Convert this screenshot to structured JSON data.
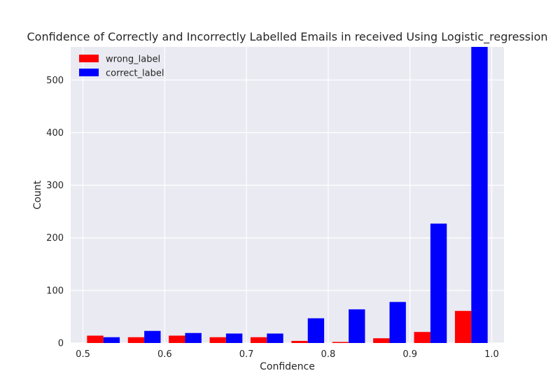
{
  "chart_data": {
    "type": "bar",
    "title": "Confidence of Correctly and Incorrectly Labelled Emails in received Using Logistic_regression",
    "xlabel": "Confidence",
    "ylabel": "Count",
    "xlim": [
      0.485,
      1.015
    ],
    "ylim": [
      0,
      563
    ],
    "x_ticks": [
      0.5,
      0.6,
      0.7,
      0.8,
      0.9,
      1.0
    ],
    "x_tick_labels": [
      "0.5",
      "0.6",
      "0.7",
      "0.8",
      "0.9",
      "1.0"
    ],
    "y_ticks": [
      0,
      100,
      200,
      300,
      400,
      500
    ],
    "y_tick_labels": [
      "0",
      "100",
      "200",
      "300",
      "400",
      "500"
    ],
    "bin_edges": [
      0.5,
      0.55,
      0.6,
      0.65,
      0.7,
      0.75,
      0.8,
      0.85,
      0.9,
      0.95,
      1.0
    ],
    "grid": true,
    "legend_position": "top-left",
    "series": [
      {
        "name": "wrong_label",
        "color": "#ff0000",
        "values": [
          14,
          11,
          14,
          11,
          11,
          4,
          2,
          9,
          21,
          61
        ]
      },
      {
        "name": "correct_label",
        "color": "#0000ff",
        "values": [
          11,
          23,
          19,
          18,
          18,
          47,
          64,
          78,
          227,
          563
        ]
      }
    ],
    "background": "#eaeaf2",
    "grid_color": "#ffffff"
  }
}
